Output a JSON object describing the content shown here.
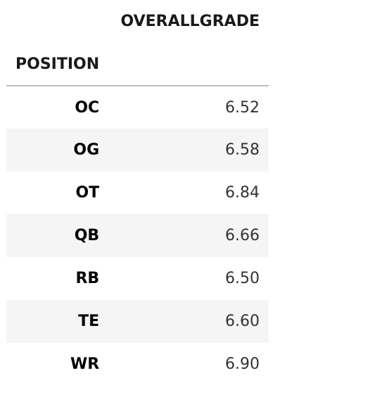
{
  "table": {
    "column_header": "OVERALLGRADE",
    "index_name": "POSITION",
    "rows": [
      {
        "label": "OC",
        "value": "6.52"
      },
      {
        "label": "OG",
        "value": "6.58"
      },
      {
        "label": "OT",
        "value": "6.84"
      },
      {
        "label": "QB",
        "value": "6.66"
      },
      {
        "label": "RB",
        "value": "6.50"
      },
      {
        "label": "TE",
        "value": "6.60"
      },
      {
        "label": "WR",
        "value": "6.90"
      }
    ]
  },
  "colors": {
    "stripe": "#f5f5f5",
    "header_rule": "#bdbdbd"
  }
}
